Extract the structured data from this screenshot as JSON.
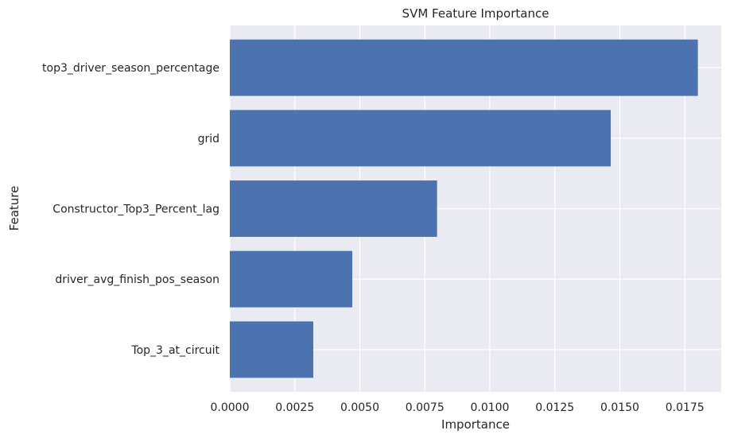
{
  "chart_data": {
    "type": "bar",
    "orientation": "horizontal",
    "title": "SVM Feature Importance",
    "xlabel": "Importance",
    "ylabel": "Feature",
    "categories": [
      "top3_driver_season_percentage",
      "grid",
      "Constructor_Top3_Percent_lag",
      "driver_avg_finish_pos_season",
      "Top_3_at_circuit"
    ],
    "values": [
      0.018,
      0.01465,
      0.00797,
      0.00471,
      0.00321
    ],
    "xlim": [
      0,
      0.0189
    ],
    "xticks": [
      "0.0000",
      "0.0025",
      "0.0050",
      "0.0075",
      "0.0100",
      "0.0125",
      "0.0150",
      "0.0175"
    ],
    "grid": true,
    "style": {
      "bar_color": "#4c72b0",
      "background": "#eaeaf2",
      "grid_color": "#ffffff"
    }
  }
}
